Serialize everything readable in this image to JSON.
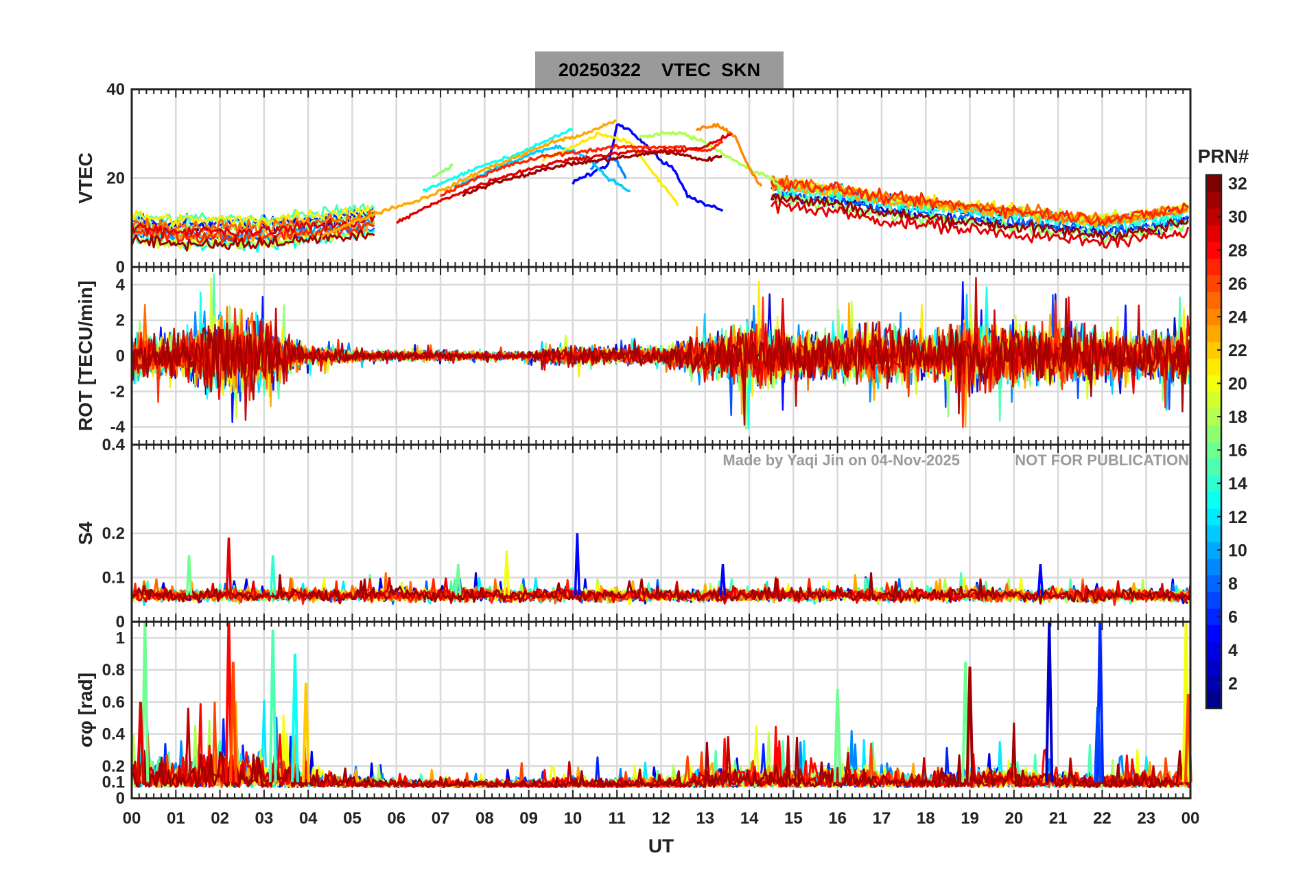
{
  "figure": {
    "date": "20250322",
    "title_quantity": "VTEC",
    "station": "SKN",
    "watermark_author": "Made by Yaqi Jin on 04-Nov-2025",
    "watermark_notice": "NOT FOR PUBLICATION",
    "xlabel": "UT"
  },
  "colorbar": {
    "label": "PRN#",
    "range": [
      1,
      32
    ],
    "tick_labels": [
      "2",
      "4",
      "6",
      "8",
      "10",
      "12",
      "14",
      "16",
      "18",
      "20",
      "22",
      "24",
      "26",
      "28",
      "30",
      "32"
    ],
    "colormap": [
      "#00008f",
      "#0000ff",
      "#0080ff",
      "#00ffff",
      "#80ff80",
      "#ffff00",
      "#ff8000",
      "#ff0000",
      "#800000"
    ]
  },
  "chart_data": [
    {
      "type": "line",
      "panel": "vtec",
      "ylabel": "VTEC",
      "ylim": [
        0,
        40
      ],
      "yticks": [
        "0",
        "20",
        "40"
      ],
      "xlim": [
        0,
        24
      ],
      "xtick_labels": [
        "00",
        "01",
        "02",
        "03",
        "04",
        "05",
        "06",
        "07",
        "08",
        "09",
        "10",
        "11",
        "12",
        "13",
        "14",
        "15",
        "16",
        "17",
        "18",
        "19",
        "20",
        "21",
        "22",
        "23",
        "00"
      ],
      "grid": true,
      "series": [
        {
          "prn": 5,
          "x": [
            10.0,
            10.4,
            10.8,
            11.0,
            11.3,
            11.7,
            12.0,
            12.3,
            12.6,
            13.0,
            13.4
          ],
          "y": [
            19,
            21,
            23,
            32,
            31,
            27,
            24,
            22,
            16,
            14,
            13
          ]
        },
        {
          "prn": 9,
          "x": [
            10.4,
            10.7,
            11.0,
            11.2
          ],
          "y": [
            22,
            25,
            24,
            20
          ]
        },
        {
          "prn": 11,
          "x": [
            7.3,
            8.0,
            8.7,
            9.2,
            9.7,
            10.3,
            10.8,
            11.3
          ],
          "y": [
            18,
            21,
            24,
            26,
            27,
            25,
            20,
            17
          ]
        },
        {
          "prn": 13,
          "x": [
            6.6,
            7.3,
            8.0,
            8.7,
            9.3,
            10.0
          ],
          "y": [
            17,
            20,
            23,
            25,
            28,
            31
          ]
        },
        {
          "prn": 17,
          "x": [
            6.8,
            7.3
          ],
          "y": [
            20,
            23
          ]
        },
        {
          "prn": 18,
          "x": [
            11.5,
            12.0,
            12.5,
            13.0,
            13.5,
            14.0,
            14.5,
            14.8
          ],
          "y": [
            29,
            30,
            30,
            28,
            25,
            22,
            20,
            17
          ]
        },
        {
          "prn": 21,
          "x": [
            9.3,
            10.0,
            10.6,
            11.3,
            11.9,
            12.4
          ],
          "y": [
            24,
            27,
            30,
            28,
            20,
            14
          ]
        },
        {
          "prn": 23,
          "x": [
            4.3,
            5.0,
            5.8,
            6.5,
            7.2,
            8.0,
            8.8,
            9.5,
            10.3,
            11.0
          ],
          "y": [
            7,
            10,
            13,
            15,
            18,
            22,
            25,
            28,
            30,
            33
          ]
        },
        {
          "prn": 24,
          "x": [
            12.8,
            13.3,
            13.7,
            14.0,
            14.3
          ],
          "y": [
            31,
            32,
            29,
            22,
            18
          ]
        },
        {
          "prn": 27,
          "x": [
            7.0,
            7.8,
            8.6,
            9.4,
            10.2,
            11.0,
            11.8,
            12.4,
            13.0,
            13.4
          ],
          "y": [
            16,
            20,
            23,
            25,
            26,
            27,
            27,
            27,
            26,
            28
          ]
        },
        {
          "prn": 29,
          "x": [
            6.0,
            6.8,
            7.5,
            8.3,
            9.0,
            9.8,
            10.6,
            11.4,
            12.2,
            13.0,
            13.6
          ],
          "y": [
            10,
            14,
            17,
            20,
            22,
            24,
            25,
            26,
            26,
            27,
            30
          ]
        },
        {
          "prn": 31,
          "x": [
            7.5,
            8.2,
            9.0,
            9.8,
            10.6,
            11.4,
            12.0,
            12.6,
            13.0,
            13.4
          ],
          "y": [
            16,
            19,
            21,
            23,
            24,
            25,
            26,
            25,
            24,
            25
          ]
        }
      ],
      "diurnal_band": {
        "note": "dense background VTEC of all PRNs",
        "x": [
          0,
          1,
          2,
          3,
          4,
          5,
          6,
          7,
          8,
          9,
          10,
          11,
          12,
          13,
          14,
          15,
          16,
          17,
          18,
          19,
          20,
          21,
          22,
          23,
          24
        ],
        "y": [
          9,
          8,
          8,
          8,
          9,
          10,
          11,
          14,
          18,
          22,
          24,
          24,
          21,
          18,
          17,
          16,
          15,
          13,
          12,
          11,
          10,
          9,
          8,
          9,
          11
        ]
      }
    },
    {
      "type": "line",
      "panel": "rot",
      "ylabel": "ROT [TECU/min]",
      "ylim": [
        -5,
        5
      ],
      "yticks": [
        "-4",
        "-2",
        "0",
        "2",
        "4"
      ],
      "xlim": [
        0,
        24
      ],
      "grid": true,
      "activity_envelope": {
        "note": "approximate peak |ROT| vs UT (TECU/min)",
        "x": [
          0,
          1,
          2,
          3,
          4,
          5,
          6,
          7,
          8,
          9,
          10,
          11,
          12,
          13,
          14,
          15,
          16,
          17,
          18,
          19,
          20,
          21,
          22,
          23,
          24
        ],
        "amp": [
          3.5,
          3.0,
          5.0,
          4.5,
          1.2,
          0.8,
          0.7,
          0.6,
          0.5,
          0.5,
          1.5,
          1.0,
          1.0,
          2.5,
          4.5,
          3.5,
          3.0,
          3.5,
          3.0,
          4.5,
          4.5,
          3.5,
          3.0,
          3.0,
          3.5
        ]
      }
    },
    {
      "type": "line",
      "panel": "s4",
      "ylabel": "S4",
      "ylim": [
        0,
        0.4
      ],
      "yticks": [
        "0",
        "0.1",
        "0.2",
        "0.4"
      ],
      "xlim": [
        0,
        24
      ],
      "grid": true,
      "baseline": 0.06,
      "spikes": [
        {
          "ut": 2.2,
          "value": 0.19,
          "prn": 29
        },
        {
          "ut": 3.2,
          "value": 0.15,
          "prn": 14
        },
        {
          "ut": 1.3,
          "value": 0.15,
          "prn": 16
        },
        {
          "ut": 8.5,
          "value": 0.16,
          "prn": 20
        },
        {
          "ut": 10.1,
          "value": 0.2,
          "prn": 5
        },
        {
          "ut": 7.4,
          "value": 0.13,
          "prn": 16
        },
        {
          "ut": 13.4,
          "value": 0.13,
          "prn": 5
        },
        {
          "ut": 20.6,
          "value": 0.13,
          "prn": 5
        }
      ]
    },
    {
      "type": "line",
      "panel": "sigma_phi",
      "ylabel": "σφ [rad]",
      "ylim": [
        0,
        1.1
      ],
      "yticks": [
        "0",
        "0.1",
        "0.2",
        "0.4",
        "0.6",
        "0.8",
        "1"
      ],
      "xlim": [
        0,
        24
      ],
      "grid": true,
      "baseline": 0.07,
      "spikes": [
        {
          "ut": 0.3,
          "value": 1.1,
          "prn": 16
        },
        {
          "ut": 0.2,
          "value": 0.6,
          "prn": 29
        },
        {
          "ut": 2.2,
          "value": 1.1,
          "prn": 28
        },
        {
          "ut": 2.3,
          "value": 0.85,
          "prn": 26
        },
        {
          "ut": 3.2,
          "value": 1.05,
          "prn": 15
        },
        {
          "ut": 3.7,
          "value": 0.9,
          "prn": 13
        },
        {
          "ut": 3.95,
          "value": 0.72,
          "prn": 22
        },
        {
          "ut": 16.0,
          "value": 0.68,
          "prn": 16
        },
        {
          "ut": 18.9,
          "value": 0.85,
          "prn": 16
        },
        {
          "ut": 19.0,
          "value": 0.82,
          "prn": 31
        },
        {
          "ut": 20.8,
          "value": 1.1,
          "prn": 3
        },
        {
          "ut": 21.95,
          "value": 1.1,
          "prn": 6
        },
        {
          "ut": 21.9,
          "value": 0.57,
          "prn": 7
        },
        {
          "ut": 23.9,
          "value": 1.1,
          "prn": 20
        },
        {
          "ut": 23.95,
          "value": 0.65,
          "prn": 26
        }
      ]
    }
  ]
}
